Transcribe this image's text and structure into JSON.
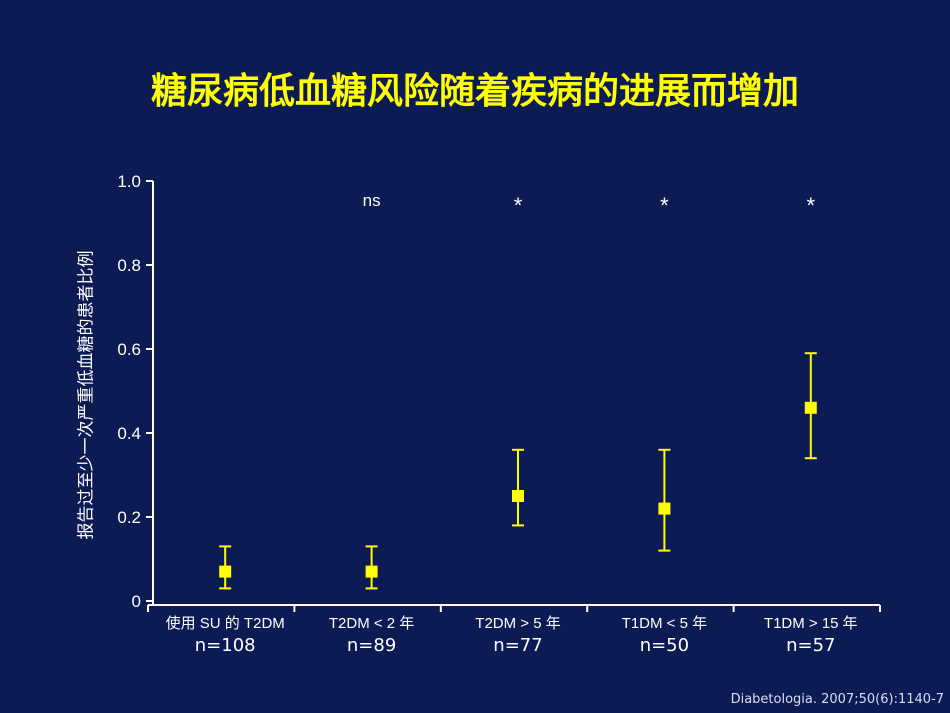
{
  "chart_data": {
    "type": "scatter",
    "title": "糖尿病低血糖风险随着疾病的进展而增加",
    "ylabel": "报告过至少一次严重低血糖的患者比例",
    "xlabel": "",
    "ylim": [
      0,
      1.0
    ],
    "yticks": [
      "0",
      "0.2",
      "0.4",
      "0.6",
      "0.8",
      "1.0"
    ],
    "grid": false,
    "categories": [
      "使用 SU 的 T2DM",
      "T2DM < 2  年",
      "T2DM > 5 年",
      "T1DM < 5 年",
      "T1DM > 15 年"
    ],
    "n_labels": [
      "n=108",
      "n=89",
      "n=77",
      "n=50",
      "n=57"
    ],
    "values": [
      0.07,
      0.07,
      0.25,
      0.22,
      0.46
    ],
    "error_low": [
      0.03,
      0.03,
      0.18,
      0.12,
      0.34
    ],
    "error_high": [
      0.13,
      0.13,
      0.36,
      0.36,
      0.59
    ],
    "significance": [
      "",
      "ns",
      "*",
      "*",
      "*"
    ],
    "marker_color": "#ffff00"
  },
  "citation": "Diabetologia. 2007;50(6):1140-7"
}
